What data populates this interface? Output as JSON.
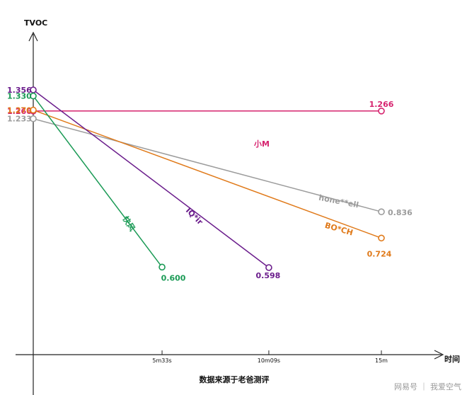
{
  "chart_data": {
    "type": "line",
    "ylabel": "TVOC",
    "xlabel": "时间",
    "caption": "数据来源于老爸测评",
    "x_ticks": [
      {
        "label": "5m33s",
        "value": 333
      },
      {
        "label": "10m09s",
        "value": 609
      },
      {
        "label": "15m",
        "value": 900
      }
    ],
    "series": [
      {
        "name": "小M",
        "color": "#d6236e",
        "points": [
          {
            "x": 0,
            "y": 1.266,
            "label": "1.266"
          },
          {
            "x": 900,
            "y": 1.266,
            "label": "1.266"
          }
        ]
      },
      {
        "name": "hone**ell",
        "color": "#9c9c9c",
        "points": [
          {
            "x": 0,
            "y": 1.233,
            "label": "1.233"
          },
          {
            "x": 900,
            "y": 0.836,
            "label": "0.836"
          }
        ]
      },
      {
        "name": "BO*CH",
        "color": "#e07a1a",
        "points": [
          {
            "x": 0,
            "y": 1.27,
            "label": "1.270"
          },
          {
            "x": 900,
            "y": 0.724,
            "label": "0.724"
          }
        ]
      },
      {
        "name": "IQ*ir",
        "color": "#6b1d8c",
        "points": [
          {
            "x": 0,
            "y": 1.356,
            "label": "1.356"
          },
          {
            "x": 609,
            "y": 0.598,
            "label": "0.598"
          }
        ]
      },
      {
        "name": "快风",
        "color": "#1a9a55",
        "points": [
          {
            "x": 0,
            "y": 1.33,
            "label": "1.330"
          },
          {
            "x": 333,
            "y": 0.6,
            "label": "0.600"
          }
        ]
      }
    ]
  },
  "watermark": "网易号 ｜ 我爱空气"
}
